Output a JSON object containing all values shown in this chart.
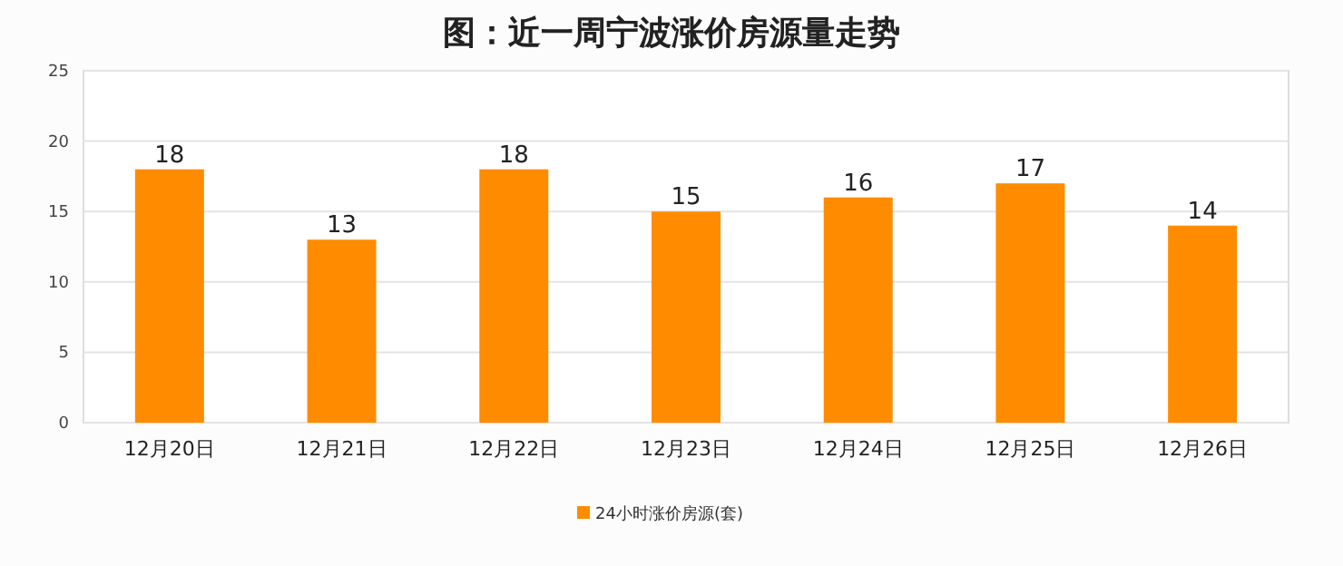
{
  "chart_data": {
    "type": "bar",
    "title": "图：近一周宁波涨价房源量走势",
    "categories": [
      "12月20日",
      "12月21日",
      "12月22日",
      "12月23日",
      "12月24日",
      "12月25日",
      "12月26日"
    ],
    "series": [
      {
        "name": "24小时涨价房源(套)",
        "color": "#ff8c00",
        "values": [
          18,
          13,
          18,
          15,
          16,
          17,
          14
        ]
      }
    ],
    "ylim": [
      0,
      25
    ],
    "yticks": [
      0,
      5,
      10,
      15,
      20,
      25
    ],
    "grid": "y",
    "legend": "bottom",
    "data_labels": true
  }
}
